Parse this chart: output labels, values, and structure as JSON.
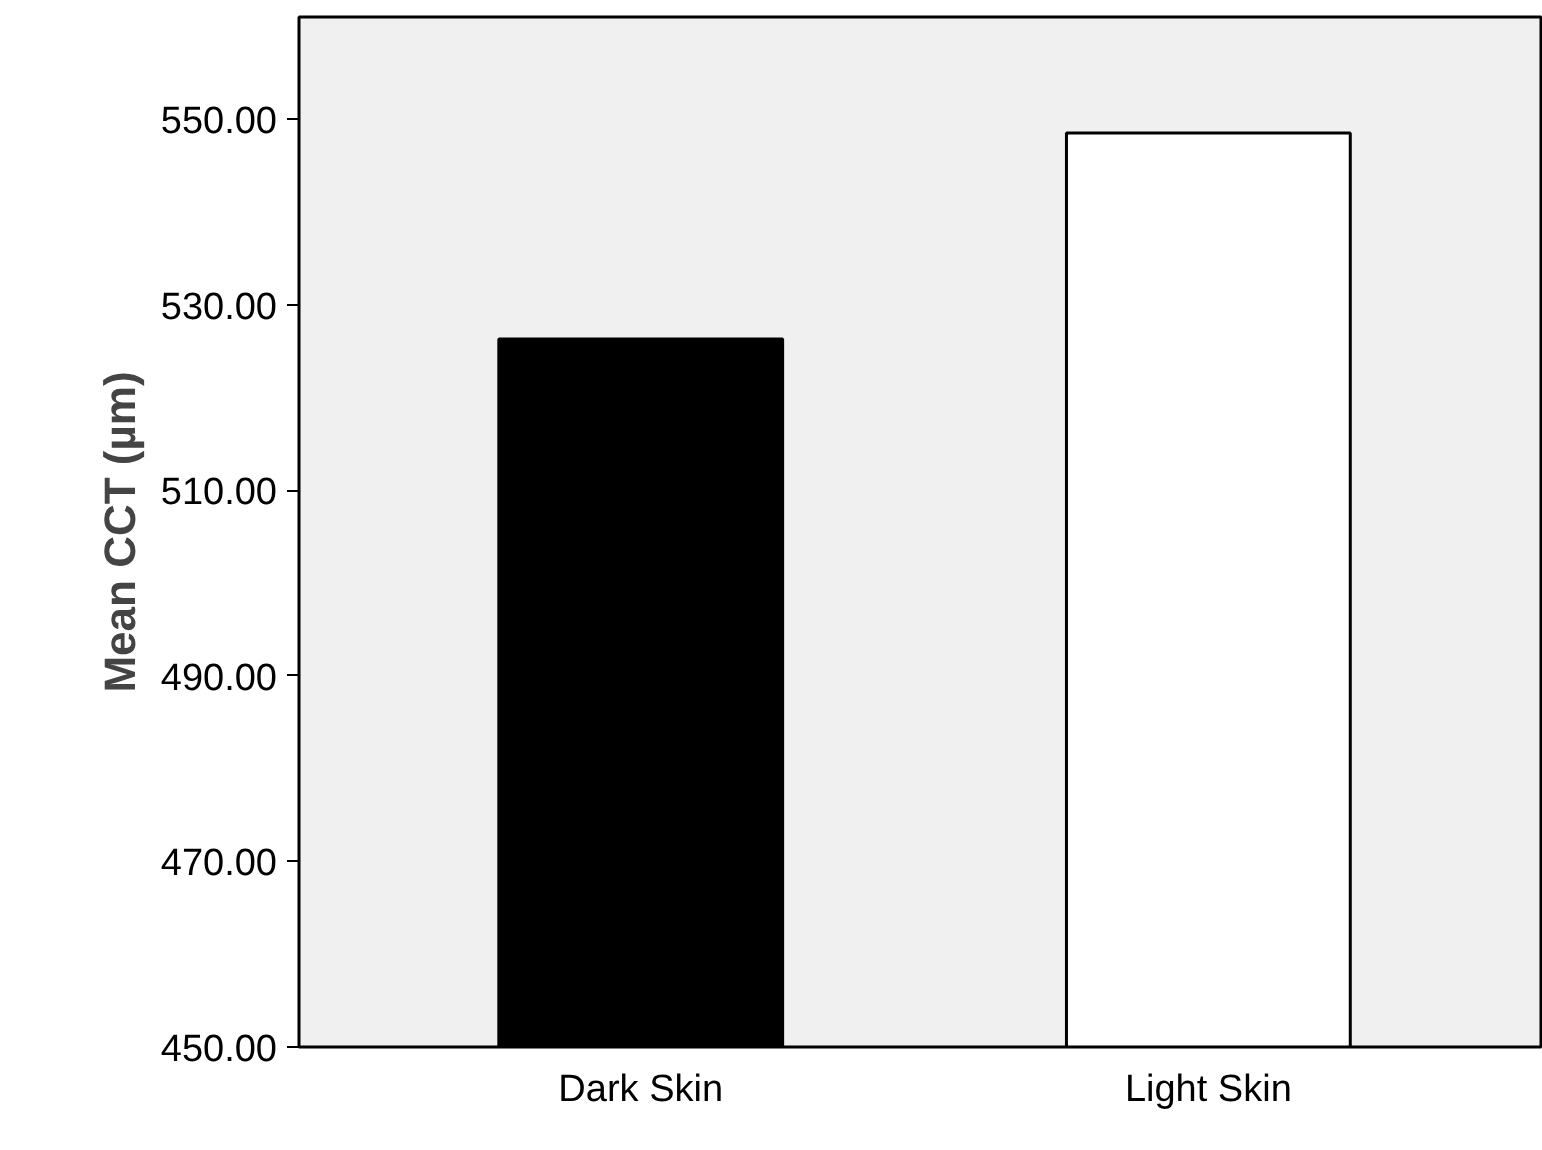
{
  "chart_data": {
    "type": "bar",
    "ylabel": "Mean CCT (µm)",
    "categories": [
      "Dark Skin",
      "Light Skin"
    ],
    "values": [
      526.3,
      548.5
    ],
    "colors": [
      "#000000",
      "#ffffff"
    ],
    "ylim": [
      450,
      561
    ],
    "yticks": [
      {
        "value": 450,
        "label": "450.00"
      },
      {
        "value": 470,
        "label": "470.00"
      },
      {
        "value": 490,
        "label": "490.00"
      },
      {
        "value": 510,
        "label": "510.00"
      },
      {
        "value": 530,
        "label": "530.00"
      },
      {
        "value": 550,
        "label": "550.00"
      }
    ],
    "grid": false
  }
}
